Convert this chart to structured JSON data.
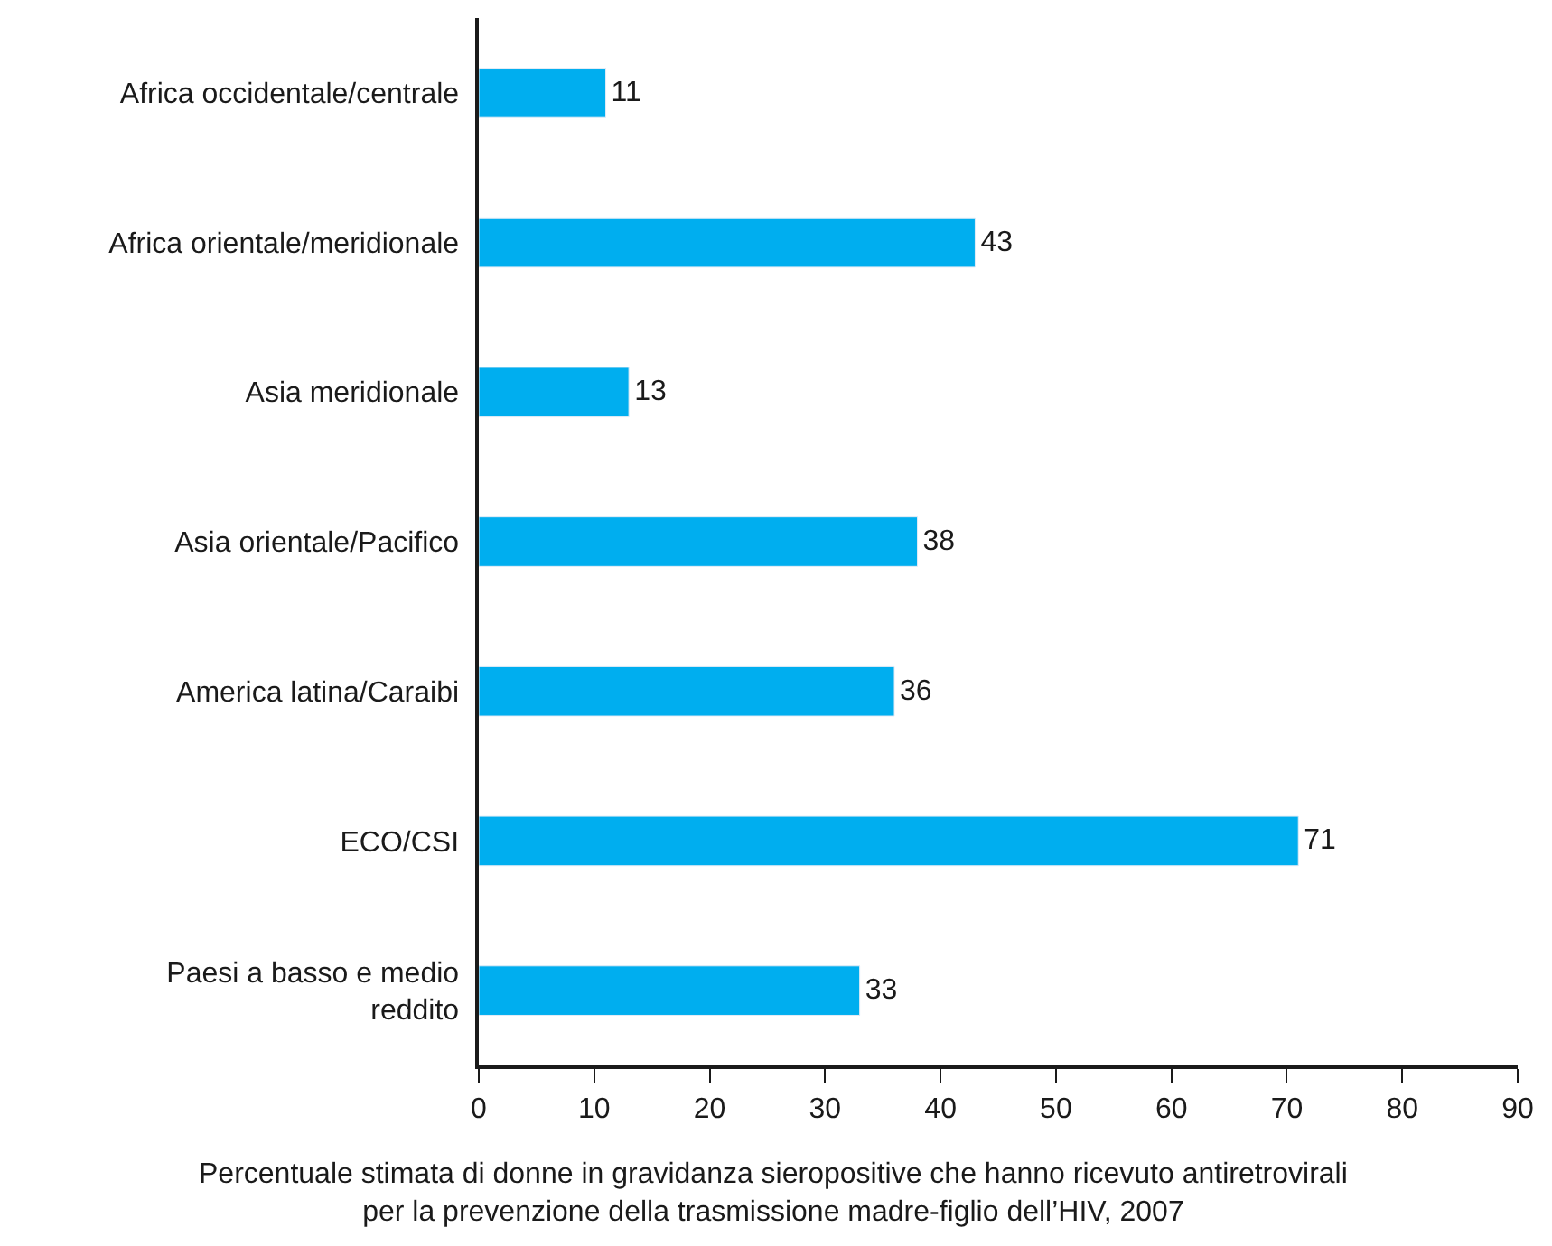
{
  "chart_data": {
    "type": "bar",
    "orientation": "horizontal",
    "categories": [
      "Africa occidentale/centrale",
      "Africa orientale/meridionale",
      "Asia meridionale",
      "Asia orientale/Pacifico",
      "America latina/Caraibi",
      "ECO/CSI",
      "Paesi a basso e medio\nreddito"
    ],
    "values": [
      11,
      43,
      13,
      38,
      36,
      71,
      33
    ],
    "color": "#00aeef",
    "xlabel": "Percentuale stimata di donne in gravidanza sieropositive che hanno ricevuto antiretrovirali\nper la prevenzione della trasmissione madre-figlio dell’HIV, 2007",
    "xlim": [
      0,
      90
    ],
    "xticks": [
      0,
      10,
      20,
      30,
      40,
      50,
      60,
      70,
      80,
      90
    ],
    "data_labels": true
  }
}
